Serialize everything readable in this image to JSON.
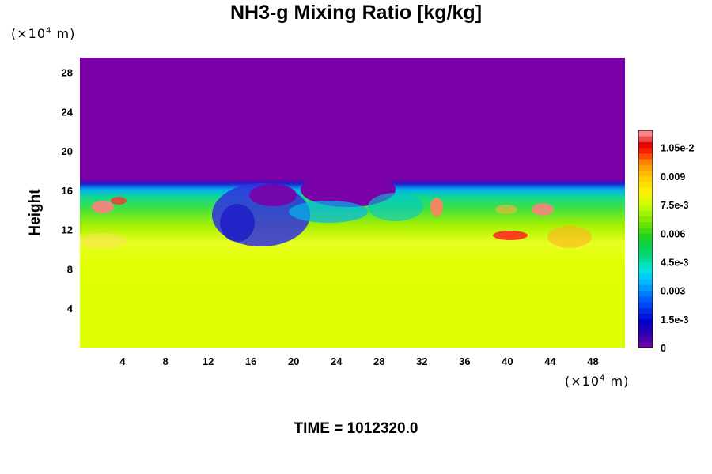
{
  "chart_data": {
    "type": "heatmap",
    "title": "NH3-g Mixing Ratio [kg/kg]",
    "ylabel": "Height",
    "xunit": {
      "prefix": "(×10",
      "exp": "4",
      "suffix": " m)"
    },
    "yunit": {
      "prefix": "(×10",
      "exp": "4",
      "suffix": " m)"
    },
    "xlim": [
      0,
      51
    ],
    "ylim": [
      0,
      29.5
    ],
    "xticks": [
      4,
      8,
      12,
      16,
      20,
      24,
      28,
      32,
      36,
      40,
      44,
      48
    ],
    "yticks": [
      4,
      8,
      12,
      16,
      20,
      24,
      28
    ],
    "colorbar": {
      "range": [
        0,
        0.0114
      ],
      "levels": 38,
      "labels": [
        {
          "value": 0,
          "text": "0"
        },
        {
          "value": 0.0015,
          "text": "1.5e-3"
        },
        {
          "value": 0.003,
          "text": "0.003"
        },
        {
          "value": 0.0045,
          "text": "4.5e-3"
        },
        {
          "value": 0.006,
          "text": "0.006"
        },
        {
          "value": 0.0075,
          "text": "7.5e-3"
        },
        {
          "value": 0.009,
          "text": "0.009"
        },
        {
          "value": 0.0105,
          "text": "1.05e-2"
        }
      ]
    },
    "grid": false
  },
  "footer": {
    "time_label": "TIME = 1012320.0"
  }
}
